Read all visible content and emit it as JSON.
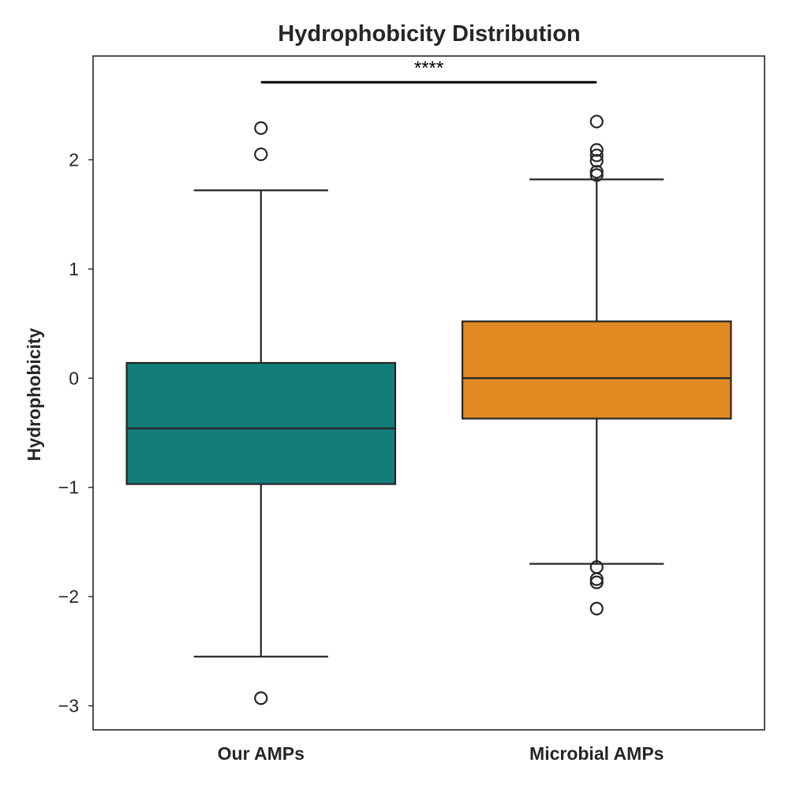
{
  "chart_data": {
    "type": "box",
    "title": "Hydrophobicity Distribution",
    "xlabel": "",
    "ylabel": "Hydrophobicity",
    "ylim": [
      -3.22,
      2.95
    ],
    "yticks": [
      -3,
      -2,
      -1,
      0,
      1,
      2
    ],
    "ytick_labels": [
      "−3",
      "−2",
      "−1",
      "0",
      "1",
      "2"
    ],
    "grid": false,
    "legend": "none",
    "categories": [
      "Our AMPs",
      "Microbial AMPs"
    ],
    "boxes": [
      {
        "category": "Our AMPs",
        "color": "#137d7b",
        "q1": -0.97,
        "median": -0.46,
        "q3": 0.14,
        "whisker_low": -2.55,
        "whisker_high": 1.72,
        "outliers": [
          -2.93,
          2.05,
          2.29
        ]
      },
      {
        "category": "Microbial AMPs",
        "color": "#e08a21",
        "q1": -0.37,
        "median": 0.0,
        "q3": 0.52,
        "whisker_low": -1.7,
        "whisker_high": 1.82,
        "outliers": [
          -2.11,
          -1.87,
          -1.84,
          -1.73,
          1.86,
          1.89,
          1.99,
          2.04,
          2.09,
          2.35
        ]
      }
    ],
    "annotation": {
      "text": "****",
      "between": [
        "Our AMPs",
        "Microbial AMPs"
      ],
      "y": 2.71
    }
  }
}
